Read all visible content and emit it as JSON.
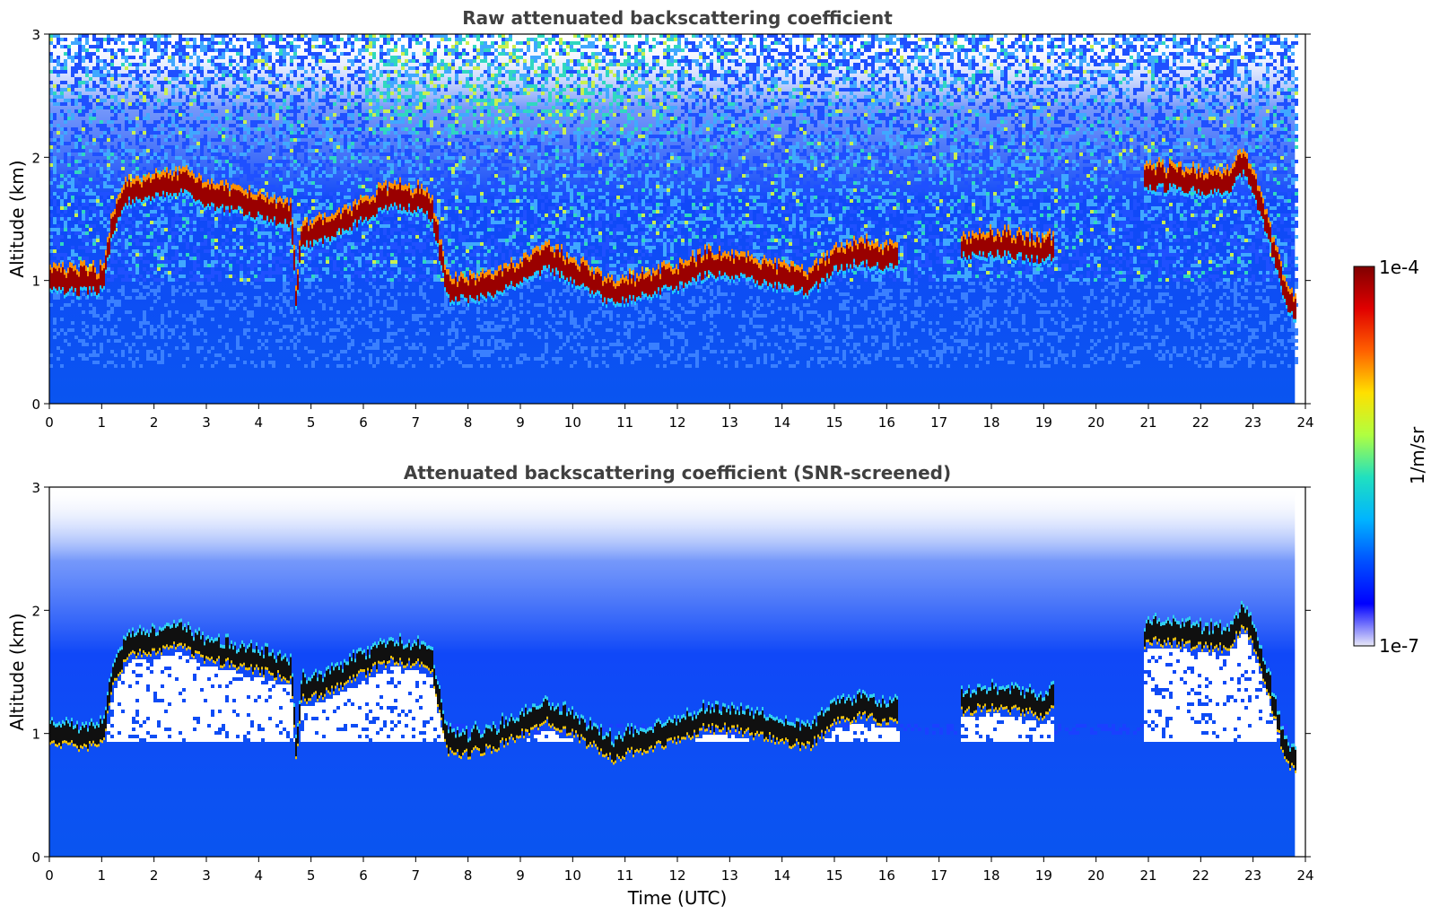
{
  "chart_data": [
    {
      "type": "heatmap",
      "title": "Raw attenuated backscattering coefficient",
      "xlabel": "",
      "ylabel": "Altitude (km)",
      "xlim": [
        0,
        24
      ],
      "ylim": [
        0,
        3
      ],
      "xticks": [
        "0",
        "1",
        "2",
        "3",
        "4",
        "5",
        "6",
        "7",
        "8",
        "9",
        "10",
        "11",
        "12",
        "13",
        "14",
        "15",
        "16",
        "17",
        "18",
        "19",
        "20",
        "21",
        "22",
        "23",
        "24"
      ],
      "yticks": [
        "0",
        "1",
        "2",
        "3"
      ],
      "data_end_time": 23.8,
      "cloud_base_km": {
        "time": [
          0,
          0.5,
          1.0,
          1.2,
          1.5,
          2.0,
          2.5,
          3.0,
          3.5,
          4.0,
          4.6,
          4.7,
          4.8,
          5.0,
          5.5,
          6.0,
          6.5,
          7.0,
          7.3,
          7.6,
          8.0,
          8.5,
          9.0,
          9.5,
          10.0,
          10.8,
          11.0,
          11.5,
          12.0,
          12.5,
          13.0,
          13.5,
          14.0,
          14.5,
          15.0,
          15.5,
          16.0,
          17.5,
          18.0,
          18.5,
          19.0,
          21.0,
          21.5,
          22.0,
          22.5,
          22.8,
          23.0,
          23.3,
          23.6,
          23.8
        ],
        "altitude": [
          0.93,
          0.91,
          0.92,
          1.4,
          1.65,
          1.68,
          1.72,
          1.6,
          1.58,
          1.52,
          1.45,
          0.8,
          1.3,
          1.3,
          1.38,
          1.5,
          1.6,
          1.58,
          1.5,
          0.85,
          0.85,
          0.9,
          1.0,
          1.1,
          1.0,
          0.8,
          0.85,
          0.9,
          0.95,
          1.05,
          1.05,
          1.0,
          0.95,
          0.9,
          1.1,
          1.15,
          1.1,
          1.2,
          1.22,
          1.2,
          1.15,
          1.75,
          1.75,
          1.72,
          1.7,
          1.9,
          1.7,
          1.3,
          0.8,
          0.7
        ]
      }
    },
    {
      "type": "heatmap",
      "title": "Attenuated backscattering coefficient (SNR-screened)",
      "xlabel": "Time (UTC)",
      "ylabel": "Altitude (km)",
      "xlim": [
        0,
        24
      ],
      "ylim": [
        0,
        3
      ],
      "xticks": [
        "0",
        "1",
        "2",
        "3",
        "4",
        "5",
        "6",
        "7",
        "8",
        "9",
        "10",
        "11",
        "12",
        "13",
        "14",
        "15",
        "16",
        "17",
        "18",
        "19",
        "20",
        "21",
        "22",
        "23",
        "24"
      ],
      "yticks": [
        "0",
        "1",
        "2",
        "3"
      ],
      "data_end_time": 23.8
    }
  ],
  "colorbar": {
    "label": "1/m/sr",
    "max_label": "1e-4",
    "min_label": "1e-7",
    "colors": [
      "#e8e8f8",
      "#0000ff",
      "#0050ff",
      "#00b4ff",
      "#20e0c0",
      "#b0ff40",
      "#ffe000",
      "#ff6000",
      "#e00000",
      "#800000"
    ]
  }
}
